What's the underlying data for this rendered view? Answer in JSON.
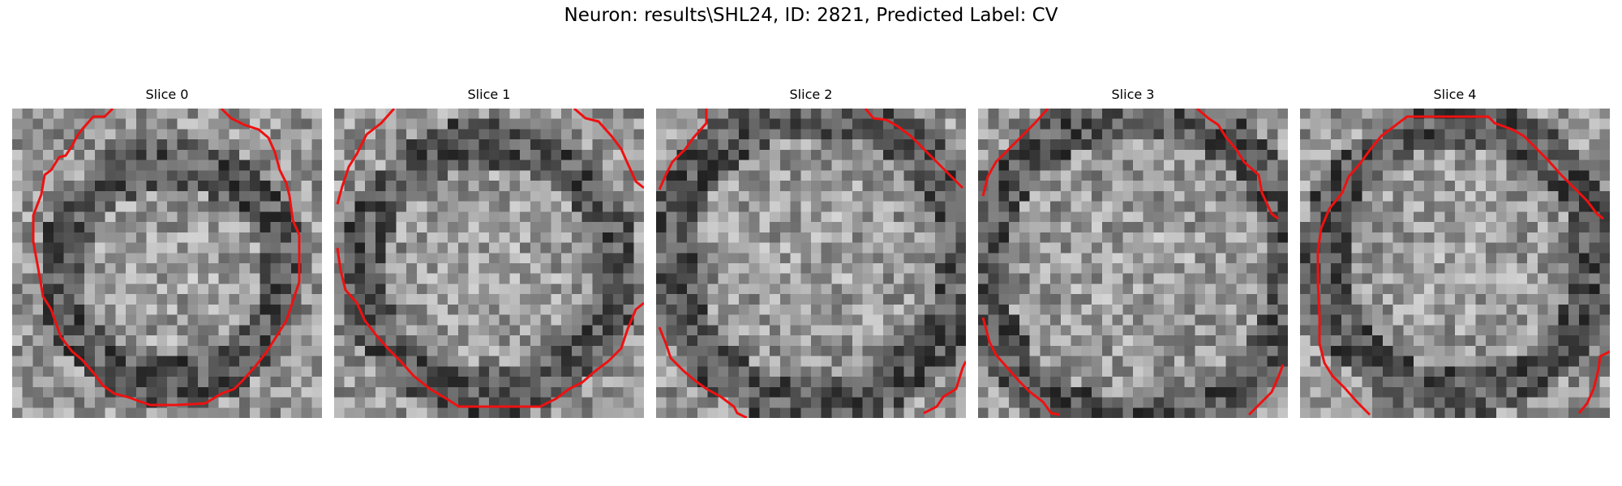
{
  "figure": {
    "title": "Neuron: results\\SHL24, ID: 2821, Predicted Label: CV"
  },
  "panels": [
    {
      "title": "Slice 0"
    },
    {
      "title": "Slice 1"
    },
    {
      "title": "Slice 2"
    },
    {
      "title": "Slice 3"
    },
    {
      "title": "Slice 4"
    }
  ],
  "colors": {
    "contour": "#ee1111",
    "colormap": "gray"
  }
}
